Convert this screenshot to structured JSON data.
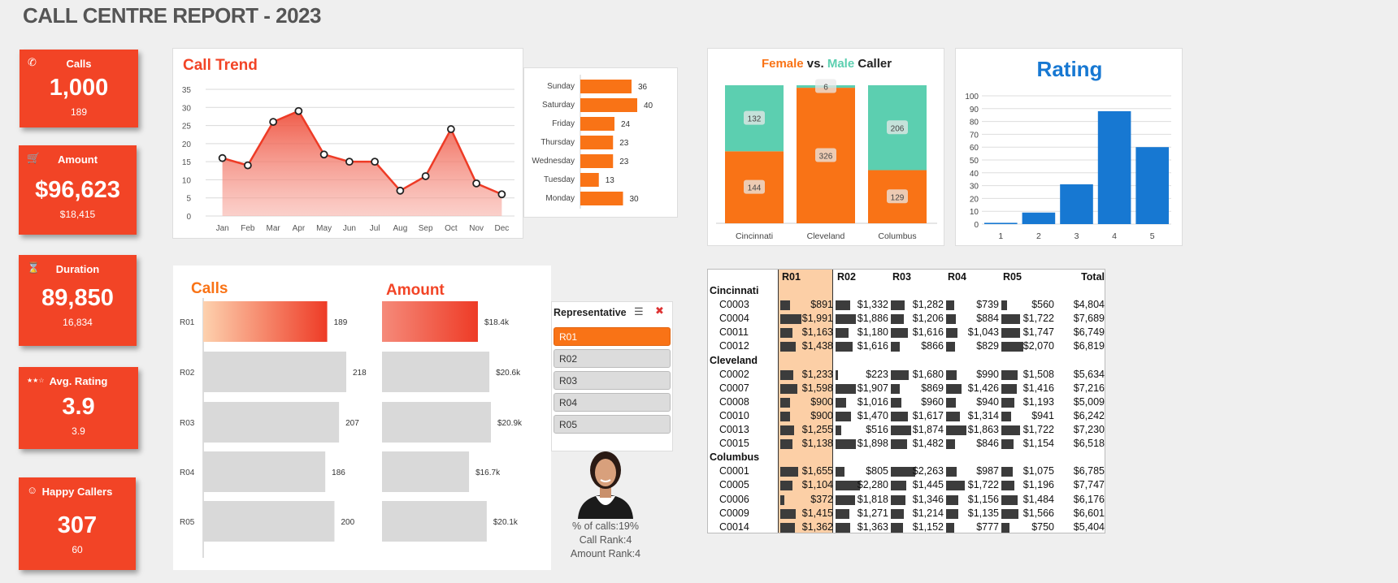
{
  "title": "CALL CENTRE REPORT - 2023",
  "colors": {
    "card": "#f24426",
    "orange": "#f97316",
    "teal": "#5ccfb0",
    "blue": "#1778d2"
  },
  "cards": [
    {
      "label": "Calls",
      "value": "1,000",
      "sub": "189",
      "icon": "phone-icon"
    },
    {
      "label": "Amount",
      "value": "$96,623",
      "sub": "$18,415",
      "icon": "cart-icon"
    },
    {
      "label": "Duration",
      "value": "89,850",
      "sub": "16,834",
      "icon": "hourglass-icon"
    },
    {
      "label": "Avg. Rating",
      "value": "3.9",
      "sub": "3.9",
      "icon": "stars-icon"
    },
    {
      "label": "Happy Callers",
      "value": "307",
      "sub": "60",
      "icon": "smiley-icon"
    }
  ],
  "call_trend": {
    "title": "Call Trend"
  },
  "gender": {
    "female": "Female",
    "vs": " vs. ",
    "male": "Male",
    "caller": " Caller"
  },
  "rating": {
    "title": "Rating"
  },
  "calls_panel": {
    "title": "Calls"
  },
  "amount_panel": {
    "title": "Amount"
  },
  "slicer": {
    "header": "Representative",
    "items": [
      "R01",
      "R02",
      "R03",
      "R04",
      "R05"
    ],
    "selected": "R01"
  },
  "rep": {
    "pct": "% of calls:19%",
    "call_rank": "Call Rank:4",
    "amount_rank": "Amount Rank:4"
  },
  "chart_data": [
    {
      "type": "area",
      "title": "Call Trend",
      "categories": [
        "Jan",
        "Feb",
        "Mar",
        "Apr",
        "May",
        "Jun",
        "Jul",
        "Aug",
        "Sep",
        "Oct",
        "Nov",
        "Dec"
      ],
      "values": [
        16,
        14,
        26,
        29,
        17,
        15,
        15,
        7,
        11,
        24,
        9,
        6
      ],
      "yticks": [
        "0",
        "5",
        "10",
        "15",
        "20",
        "25",
        "30",
        "35"
      ],
      "ylim": [
        0,
        35
      ]
    },
    {
      "type": "bar",
      "orientation": "horizontal",
      "categories": [
        "Sunday",
        "Saturday",
        "Friday",
        "Thursday",
        "Wednesday",
        "Tuesday",
        "Monday"
      ],
      "values": [
        36,
        40,
        24,
        23,
        23,
        13,
        30
      ]
    },
    {
      "type": "bar",
      "stacked": true,
      "title": "Female vs. Male Caller",
      "categories": [
        "Cincinnati",
        "Cleveland",
        "Columbus"
      ],
      "series": [
        {
          "name": "Female",
          "values": [
            144,
            326,
            129
          ]
        },
        {
          "name": "Male",
          "values": [
            132,
            6,
            206
          ]
        }
      ]
    },
    {
      "type": "bar",
      "title": "Rating",
      "categories": [
        "1",
        "2",
        "3",
        "4",
        "5"
      ],
      "values": [
        1,
        9,
        31,
        88,
        60
      ],
      "yticks": [
        "0",
        "10",
        "20",
        "30",
        "40",
        "50",
        "60",
        "70",
        "80",
        "90",
        "100"
      ],
      "ylim": [
        0,
        100
      ]
    },
    {
      "type": "bar",
      "orientation": "horizontal",
      "title": "Calls",
      "categories": [
        "R01",
        "R02",
        "R03",
        "R04",
        "R05"
      ],
      "values": [
        189,
        218,
        207,
        186,
        200
      ],
      "labels": [
        "189",
        "218",
        "207",
        "186",
        "200"
      ]
    },
    {
      "type": "bar",
      "orientation": "horizontal",
      "title": "Amount",
      "categories": [
        "R01",
        "R02",
        "R03",
        "R04",
        "R05"
      ],
      "values": [
        18.4,
        20.6,
        20.9,
        16.7,
        20.1
      ],
      "labels": [
        "$18.4k",
        "$20.6k",
        "$20.9k",
        "$16.7k",
        "$20.1k"
      ]
    },
    {
      "type": "table",
      "columns": [
        "R01",
        "R02",
        "R03",
        "R04",
        "R05",
        "Total"
      ],
      "groups": [
        {
          "name": "Cincinnati",
          "rows": [
            {
              "id": "C0003",
              "values": [
                891,
                1332,
                1282,
                739,
                560,
                4804
              ]
            },
            {
              "id": "C0004",
              "values": [
                1991,
                1886,
                1206,
                884,
                1722,
                7689
              ]
            },
            {
              "id": "C0011",
              "values": [
                1163,
                1180,
                1616,
                1043,
                1747,
                6749
              ]
            },
            {
              "id": "C0012",
              "values": [
                1438,
                1616,
                866,
                829,
                2070,
                6819
              ]
            }
          ]
        },
        {
          "name": "Cleveland",
          "rows": [
            {
              "id": "C0002",
              "values": [
                1233,
                223,
                1680,
                990,
                1508,
                5634
              ]
            },
            {
              "id": "C0007",
              "values": [
                1598,
                1907,
                869,
                1426,
                1416,
                7216
              ]
            },
            {
              "id": "C0008",
              "values": [
                900,
                1016,
                960,
                940,
                1193,
                5009
              ]
            },
            {
              "id": "C0010",
              "values": [
                900,
                1470,
                1617,
                1314,
                941,
                6242
              ]
            },
            {
              "id": "C0013",
              "values": [
                1255,
                516,
                1874,
                1863,
                1722,
                7230
              ]
            },
            {
              "id": "C0015",
              "values": [
                1138,
                1898,
                1482,
                846,
                1154,
                6518
              ]
            }
          ]
        },
        {
          "name": "Columbus",
          "rows": [
            {
              "id": "C0001",
              "values": [
                1655,
                805,
                2263,
                987,
                1075,
                6785
              ]
            },
            {
              "id": "C0005",
              "values": [
                1104,
                2280,
                1445,
                1722,
                1196,
                7747
              ]
            },
            {
              "id": "C0006",
              "values": [
                372,
                1818,
                1346,
                1156,
                1484,
                6176
              ]
            },
            {
              "id": "C0009",
              "values": [
                1415,
                1271,
                1214,
                1135,
                1566,
                6601
              ]
            },
            {
              "id": "C0014",
              "values": [
                1362,
                1363,
                1152,
                777,
                750,
                5404
              ]
            }
          ]
        }
      ]
    }
  ]
}
